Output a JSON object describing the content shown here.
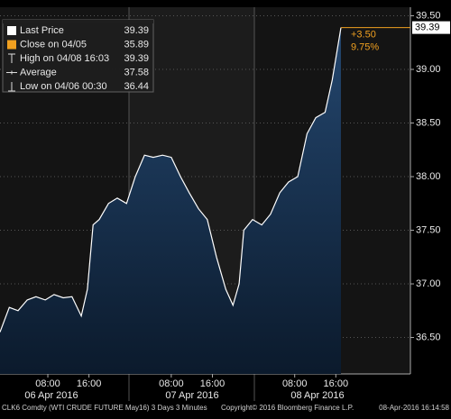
{
  "chart_data": {
    "type": "area",
    "legend": [
      {
        "name": "Last Price",
        "value": 39.39
      },
      {
        "name": "Close on 04/05",
        "value": 35.89
      },
      {
        "name": "High on 04/08 16:03",
        "value": 39.39
      },
      {
        "name": "Average",
        "value": 37.58
      },
      {
        "name": "Low on 04/06 00:30",
        "value": 36.44
      }
    ],
    "x": [
      -1.3,
      0.5,
      2.2,
      4.0,
      5.7,
      7.5,
      9.2,
      11.0,
      12.7,
      14.5,
      15.7,
      16.8,
      18.0,
      19.8,
      21.5,
      23.3,
      25.0,
      26.8,
      28.5,
      30.3,
      32.0,
      33.8,
      35.5,
      37.3,
      39.0,
      40.8,
      42.6,
      44.0,
      45.2,
      46.1,
      47.8,
      49.6,
      51.3,
      53.1,
      54.8,
      56.6,
      58.4,
      60.1,
      61.9,
      63.3,
      64.5,
      65.0
    ],
    "series": [
      {
        "name": "Last Price",
        "color": "#ffffff",
        "values": [
          36.55,
          36.78,
          36.75,
          36.85,
          36.88,
          36.85,
          36.9,
          36.87,
          36.88,
          36.7,
          36.95,
          37.55,
          37.6,
          37.75,
          37.8,
          37.75,
          38.0,
          38.2,
          38.18,
          38.2,
          38.18,
          38.0,
          37.85,
          37.7,
          37.6,
          37.25,
          36.95,
          36.8,
          37.0,
          37.5,
          37.6,
          37.55,
          37.65,
          37.85,
          37.95,
          38.0,
          38.4,
          38.55,
          38.6,
          38.9,
          39.25,
          39.39
        ]
      }
    ],
    "last_label": 39.39,
    "change": "+3.50",
    "change_pct": "9.75%",
    "change_color": "#f0a020",
    "xlim": [
      -1.3,
      78.5
    ],
    "xticks": [
      {
        "value": 8,
        "label": "08:00"
      },
      {
        "value": 16,
        "label": "16:00"
      },
      {
        "value": 32,
        "label": "08:00"
      },
      {
        "value": 40,
        "label": "16:00"
      },
      {
        "value": 56,
        "label": "08:00"
      },
      {
        "value": 64,
        "label": "16:00"
      }
    ],
    "day_labels": [
      "06 Apr 2016",
      "07 Apr 2016",
      "08 Apr 2016"
    ],
    "ylim": [
      36.16,
      39.58
    ],
    "yticks": [
      {
        "value": 36.5,
        "label": "36.50"
      },
      {
        "value": 37,
        "label": "37.00"
      },
      {
        "value": 37.5,
        "label": "37.50"
      },
      {
        "value": 38,
        "label": "38.00"
      },
      {
        "value": 38.5,
        "label": "38.50"
      },
      {
        "value": 39,
        "label": "39.00"
      },
      {
        "value": 39.5,
        "label": "39.50"
      }
    ],
    "grid": true,
    "footer": [
      "CLK6 Comdty (WTI CRUDE FUTURE  May16) 3 Days 3 Minutes",
      "Copyright© 2016 Bloomberg Finance L.P.",
      "08-Apr-2016 16:14:58"
    ]
  }
}
